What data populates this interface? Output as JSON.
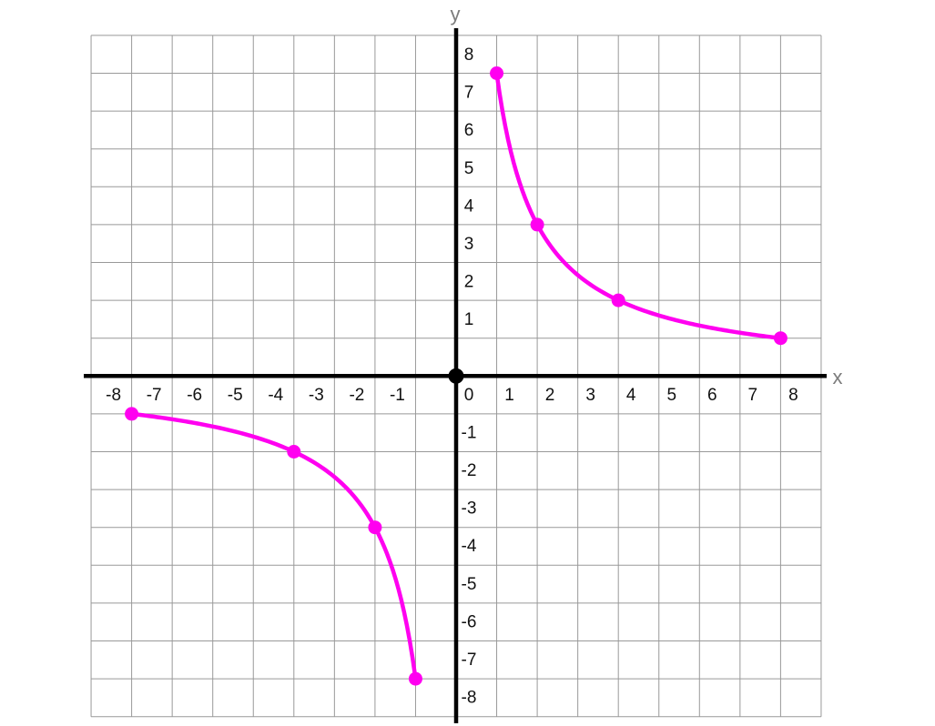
{
  "chart_data": {
    "type": "line",
    "relation": "y = 8/x",
    "k": 8,
    "title": "",
    "xlabel": "x",
    "ylabel": "y",
    "xlim": [
      -9,
      9
    ],
    "ylim": [
      -9,
      9
    ],
    "grid": true,
    "legend": false,
    "origin_label": "0",
    "x_ticks": [
      -8,
      -7,
      -6,
      -5,
      -4,
      -3,
      -2,
      -1,
      0,
      1,
      2,
      3,
      4,
      5,
      6,
      7,
      8
    ],
    "y_ticks": [
      8,
      7,
      6,
      5,
      4,
      3,
      2,
      1,
      -1,
      -2,
      -3,
      -4,
      -5,
      -6,
      -7,
      -8
    ],
    "branches": [
      {
        "name": "quadrant-1",
        "x_range": [
          1,
          8
        ],
        "points": [
          [
            1,
            8
          ],
          [
            2,
            4
          ],
          [
            4,
            2
          ],
          [
            8,
            1
          ]
        ]
      },
      {
        "name": "quadrant-3",
        "x_range": [
          -8,
          -1
        ],
        "points": [
          [
            -8,
            -1
          ],
          [
            -4,
            -2
          ],
          [
            -2,
            -4
          ],
          [
            -1,
            -8
          ]
        ]
      }
    ],
    "colors": {
      "curve": "#FF00F0",
      "axis": "#000000",
      "grid_lines": "#999999",
      "tick_labels": "#111111",
      "axis_names": "#7d7d7d",
      "background": "#ffffff"
    }
  }
}
